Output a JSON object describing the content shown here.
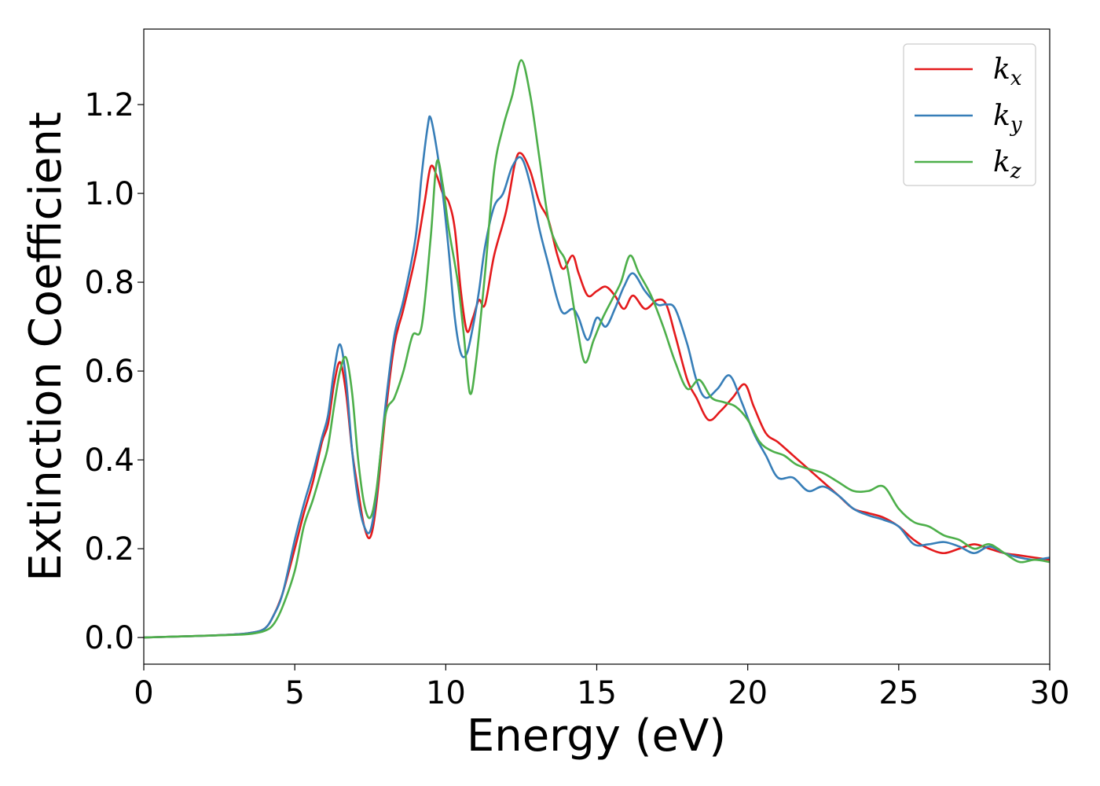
{
  "chart_data": {
    "type": "line",
    "xlabel": "Energy (eV)",
    "ylabel": "Extinction Coefficient",
    "xlim": [
      0,
      30
    ],
    "ylim": [
      -0.06,
      1.37
    ],
    "xticks": [
      0,
      5,
      10,
      15,
      20,
      25,
      30
    ],
    "yticks": [
      0.0,
      0.2,
      0.4,
      0.6,
      0.8,
      1.0,
      1.2
    ],
    "xtick_labels": [
      "0",
      "5",
      "10",
      "15",
      "20",
      "25",
      "30"
    ],
    "ytick_labels": [
      "0.0",
      "0.2",
      "0.4",
      "0.6",
      "0.8",
      "1.0",
      "1.2"
    ],
    "grid": false,
    "legend_position": "top-right",
    "series": [
      {
        "name": "k_x",
        "label_base": "k",
        "label_sub": "x",
        "color": "#e41a1c",
        "points": [
          [
            0,
            0
          ],
          [
            1,
            0.002
          ],
          [
            2,
            0.004
          ],
          [
            3,
            0.007
          ],
          [
            3.5,
            0.01
          ],
          [
            4,
            0.02
          ],
          [
            4.3,
            0.05
          ],
          [
            4.6,
            0.1
          ],
          [
            5,
            0.2
          ],
          [
            5.3,
            0.28
          ],
          [
            5.6,
            0.35
          ],
          [
            5.9,
            0.44
          ],
          [
            6.1,
            0.48
          ],
          [
            6.3,
            0.57
          ],
          [
            6.5,
            0.62
          ],
          [
            6.7,
            0.55
          ],
          [
            6.9,
            0.42
          ],
          [
            7.1,
            0.33
          ],
          [
            7.3,
            0.25
          ],
          [
            7.5,
            0.226
          ],
          [
            7.7,
            0.3
          ],
          [
            8,
            0.5
          ],
          [
            8.3,
            0.66
          ],
          [
            8.6,
            0.74
          ],
          [
            9,
            0.86
          ],
          [
            9.3,
            0.98
          ],
          [
            9.5,
            1.06
          ],
          [
            9.7,
            1.04
          ],
          [
            9.9,
            1.0
          ],
          [
            10.1,
            0.98
          ],
          [
            10.3,
            0.92
          ],
          [
            10.5,
            0.78
          ],
          [
            10.7,
            0.69
          ],
          [
            10.9,
            0.72
          ],
          [
            11.1,
            0.76
          ],
          [
            11.3,
            0.75
          ],
          [
            11.6,
            0.86
          ],
          [
            12,
            0.96
          ],
          [
            12.3,
            1.07
          ],
          [
            12.5,
            1.09
          ],
          [
            12.8,
            1.05
          ],
          [
            13.1,
            0.98
          ],
          [
            13.4,
            0.94
          ],
          [
            13.7,
            0.86
          ],
          [
            13.9,
            0.83
          ],
          [
            14.2,
            0.86
          ],
          [
            14.4,
            0.82
          ],
          [
            14.7,
            0.77
          ],
          [
            15,
            0.78
          ],
          [
            15.3,
            0.79
          ],
          [
            15.6,
            0.77
          ],
          [
            15.9,
            0.74
          ],
          [
            16.2,
            0.77
          ],
          [
            16.6,
            0.74
          ],
          [
            17,
            0.76
          ],
          [
            17.3,
            0.75
          ],
          [
            17.6,
            0.68
          ],
          [
            18,
            0.58
          ],
          [
            18.3,
            0.54
          ],
          [
            18.7,
            0.49
          ],
          [
            19.1,
            0.51
          ],
          [
            19.5,
            0.54
          ],
          [
            19.9,
            0.57
          ],
          [
            20.2,
            0.52
          ],
          [
            20.6,
            0.46
          ],
          [
            21,
            0.44
          ],
          [
            21.5,
            0.41
          ],
          [
            22,
            0.38
          ],
          [
            22.5,
            0.35
          ],
          [
            23,
            0.32
          ],
          [
            23.5,
            0.29
          ],
          [
            24,
            0.28
          ],
          [
            24.5,
            0.27
          ],
          [
            25,
            0.25
          ],
          [
            25.5,
            0.22
          ],
          [
            26,
            0.2
          ],
          [
            26.5,
            0.19
          ],
          [
            27,
            0.2
          ],
          [
            27.5,
            0.21
          ],
          [
            28,
            0.2
          ],
          [
            28.5,
            0.19
          ],
          [
            29,
            0.185
          ],
          [
            29.5,
            0.18
          ],
          [
            30,
            0.175
          ]
        ]
      },
      {
        "name": "k_y",
        "label_base": "k",
        "label_sub": "y",
        "color": "#377eb8",
        "points": [
          [
            0,
            0
          ],
          [
            1,
            0.002
          ],
          [
            2,
            0.004
          ],
          [
            3,
            0.007
          ],
          [
            3.5,
            0.01
          ],
          [
            4,
            0.02
          ],
          [
            4.3,
            0.05
          ],
          [
            4.6,
            0.1
          ],
          [
            5,
            0.22
          ],
          [
            5.3,
            0.3
          ],
          [
            5.6,
            0.37
          ],
          [
            5.9,
            0.45
          ],
          [
            6.1,
            0.5
          ],
          [
            6.3,
            0.6
          ],
          [
            6.5,
            0.66
          ],
          [
            6.7,
            0.58
          ],
          [
            6.9,
            0.42
          ],
          [
            7.1,
            0.31
          ],
          [
            7.3,
            0.25
          ],
          [
            7.5,
            0.24
          ],
          [
            7.7,
            0.32
          ],
          [
            8,
            0.52
          ],
          [
            8.3,
            0.68
          ],
          [
            8.6,
            0.76
          ],
          [
            9,
            0.9
          ],
          [
            9.2,
            1.04
          ],
          [
            9.4,
            1.15
          ],
          [
            9.5,
            1.17
          ],
          [
            9.7,
            1.1
          ],
          [
            9.9,
            1.0
          ],
          [
            10.1,
            0.87
          ],
          [
            10.3,
            0.72
          ],
          [
            10.5,
            0.64
          ],
          [
            10.7,
            0.64
          ],
          [
            10.9,
            0.7
          ],
          [
            11.1,
            0.78
          ],
          [
            11.3,
            0.88
          ],
          [
            11.6,
            0.97
          ],
          [
            11.9,
            1.0
          ],
          [
            12.2,
            1.06
          ],
          [
            12.5,
            1.08
          ],
          [
            12.8,
            1.02
          ],
          [
            13.1,
            0.92
          ],
          [
            13.4,
            0.84
          ],
          [
            13.7,
            0.76
          ],
          [
            13.9,
            0.73
          ],
          [
            14.2,
            0.74
          ],
          [
            14.4,
            0.72
          ],
          [
            14.7,
            0.67
          ],
          [
            15,
            0.72
          ],
          [
            15.3,
            0.7
          ],
          [
            15.6,
            0.74
          ],
          [
            15.9,
            0.79
          ],
          [
            16.2,
            0.82
          ],
          [
            16.6,
            0.78
          ],
          [
            17,
            0.75
          ],
          [
            17.3,
            0.75
          ],
          [
            17.6,
            0.74
          ],
          [
            18,
            0.66
          ],
          [
            18.3,
            0.58
          ],
          [
            18.6,
            0.54
          ],
          [
            19,
            0.56
          ],
          [
            19.4,
            0.59
          ],
          [
            19.8,
            0.53
          ],
          [
            20.2,
            0.46
          ],
          [
            20.6,
            0.41
          ],
          [
            21,
            0.36
          ],
          [
            21.5,
            0.36
          ],
          [
            22,
            0.33
          ],
          [
            22.5,
            0.34
          ],
          [
            23,
            0.32
          ],
          [
            23.5,
            0.29
          ],
          [
            24,
            0.275
          ],
          [
            24.5,
            0.265
          ],
          [
            25,
            0.25
          ],
          [
            25.5,
            0.21
          ],
          [
            26,
            0.21
          ],
          [
            26.5,
            0.215
          ],
          [
            27,
            0.205
          ],
          [
            27.5,
            0.19
          ],
          [
            28,
            0.205
          ],
          [
            28.5,
            0.19
          ],
          [
            29,
            0.18
          ],
          [
            29.5,
            0.175
          ],
          [
            30,
            0.18
          ]
        ]
      },
      {
        "name": "k_z",
        "label_base": "k",
        "label_sub": "z",
        "color": "#4daf4a",
        "points": [
          [
            0,
            0
          ],
          [
            1,
            0.002
          ],
          [
            2,
            0.004
          ],
          [
            3,
            0.006
          ],
          [
            3.5,
            0.008
          ],
          [
            4,
            0.015
          ],
          [
            4.3,
            0.03
          ],
          [
            4.6,
            0.07
          ],
          [
            5,
            0.15
          ],
          [
            5.3,
            0.25
          ],
          [
            5.6,
            0.31
          ],
          [
            5.9,
            0.38
          ],
          [
            6.1,
            0.43
          ],
          [
            6.3,
            0.52
          ],
          [
            6.5,
            0.6
          ],
          [
            6.7,
            0.63
          ],
          [
            6.9,
            0.55
          ],
          [
            7.1,
            0.4
          ],
          [
            7.3,
            0.3
          ],
          [
            7.5,
            0.27
          ],
          [
            7.7,
            0.33
          ],
          [
            8,
            0.5
          ],
          [
            8.3,
            0.54
          ],
          [
            8.6,
            0.6
          ],
          [
            8.9,
            0.68
          ],
          [
            9.2,
            0.7
          ],
          [
            9.5,
            0.9
          ],
          [
            9.7,
            1.07
          ],
          [
            9.9,
            1.02
          ],
          [
            10.1,
            0.92
          ],
          [
            10.4,
            0.8
          ],
          [
            10.6,
            0.68
          ],
          [
            10.8,
            0.55
          ],
          [
            11,
            0.62
          ],
          [
            11.3,
            0.82
          ],
          [
            11.6,
            1.05
          ],
          [
            11.9,
            1.15
          ],
          [
            12.2,
            1.22
          ],
          [
            12.5,
            1.3
          ],
          [
            12.8,
            1.22
          ],
          [
            13.1,
            1.08
          ],
          [
            13.4,
            0.94
          ],
          [
            13.7,
            0.88
          ],
          [
            14,
            0.84
          ],
          [
            14.3,
            0.72
          ],
          [
            14.6,
            0.62
          ],
          [
            14.9,
            0.67
          ],
          [
            15.2,
            0.72
          ],
          [
            15.5,
            0.76
          ],
          [
            15.8,
            0.8
          ],
          [
            16.1,
            0.86
          ],
          [
            16.4,
            0.82
          ],
          [
            16.8,
            0.77
          ],
          [
            17.2,
            0.7
          ],
          [
            17.6,
            0.62
          ],
          [
            18,
            0.56
          ],
          [
            18.4,
            0.58
          ],
          [
            18.8,
            0.54
          ],
          [
            19.2,
            0.53
          ],
          [
            19.6,
            0.52
          ],
          [
            20,
            0.49
          ],
          [
            20.4,
            0.44
          ],
          [
            20.8,
            0.42
          ],
          [
            21.2,
            0.41
          ],
          [
            21.6,
            0.39
          ],
          [
            22,
            0.38
          ],
          [
            22.5,
            0.37
          ],
          [
            23,
            0.35
          ],
          [
            23.5,
            0.33
          ],
          [
            24,
            0.33
          ],
          [
            24.5,
            0.34
          ],
          [
            25,
            0.29
          ],
          [
            25.5,
            0.26
          ],
          [
            26,
            0.25
          ],
          [
            26.5,
            0.23
          ],
          [
            27,
            0.22
          ],
          [
            27.5,
            0.2
          ],
          [
            28,
            0.21
          ],
          [
            28.5,
            0.19
          ],
          [
            29,
            0.17
          ],
          [
            29.5,
            0.175
          ],
          [
            30,
            0.17
          ]
        ]
      }
    ]
  }
}
